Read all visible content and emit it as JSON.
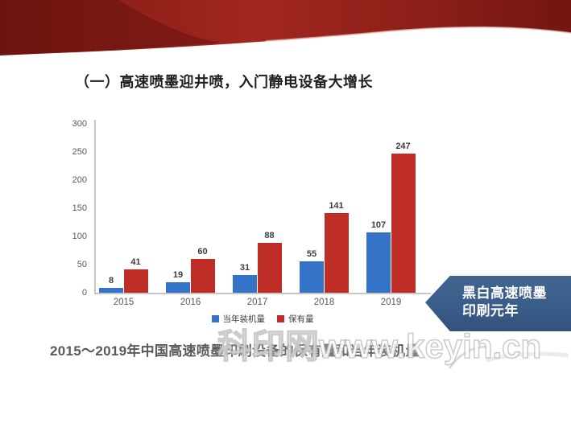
{
  "slide": {
    "title": "（一）高速喷墨迎井喷，入门静电设备大增长",
    "caption": "2015～2019年中国高速喷墨印刷设备的保有量和当年装机量",
    "watermark": "科印网www.keyin.cn",
    "callout": {
      "line1": "黑白高速喷墨",
      "line2": "印刷元年"
    }
  },
  "colors": {
    "bar_blue": "#3473C7",
    "bar_red": "#BE2E26",
    "ribbon_red": "#9A241D",
    "callout_navy": "#3B5E8E",
    "axis_gray": "#C6C6C6",
    "text_gray": "#595959"
  },
  "chart_data": {
    "type": "bar",
    "title": "",
    "xlabel": "",
    "ylabel": "",
    "categories": [
      "2015",
      "2016",
      "2017",
      "2018",
      "2019"
    ],
    "series": [
      {
        "name": "当年装机量",
        "color": "#3473C7",
        "values": [
          8,
          19,
          31,
          55,
          107
        ]
      },
      {
        "name": "保有量",
        "color": "#BE2E26",
        "values": [
          41,
          60,
          88,
          141,
          247
        ]
      }
    ],
    "ylim": [
      0,
      300
    ],
    "yticks": [
      0,
      50,
      100,
      150,
      200,
      250,
      300
    ],
    "grid": false,
    "legend_position": "bottom"
  }
}
